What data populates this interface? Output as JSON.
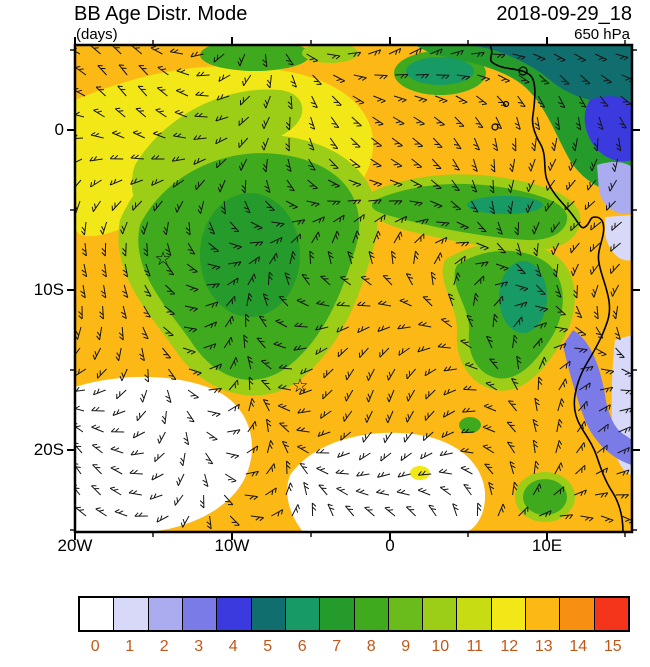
{
  "header": {
    "title": "BB Age Distr. Mode",
    "subtitle": "(days)",
    "datetime": "2018-09-29_18",
    "level": "650 hPa"
  },
  "axes": {
    "y_ticks": [
      "0",
      "10S",
      "20S"
    ],
    "x_ticks": [
      "20W",
      "10W",
      "0",
      "10E"
    ]
  },
  "map": {
    "star_char": "☆"
  },
  "colorbar": {
    "labels": [
      "0",
      "1",
      "2",
      "3",
      "4",
      "5",
      "6",
      "7",
      "8",
      "9",
      "10",
      "11",
      "12",
      "13",
      "14",
      "15"
    ],
    "colors": [
      "#FFFFFF",
      "#D8D8F8",
      "#ABABF0",
      "#7B7BE8",
      "#3A3ADF",
      "#116E6E",
      "#189A64",
      "#259B2C",
      "#3FAA1E",
      "#6ABB1C",
      "#9CCE18",
      "#C8DC14",
      "#F2E818",
      "#FCB814",
      "#F78F12",
      "#F5341C"
    ],
    "label_color": "#C2571A"
  },
  "chart_data": {
    "type": "heatmap",
    "title": "BB Age Distr. Mode",
    "units": "days",
    "level": "650 hPa",
    "valid_time": "2018-09-29_18",
    "x_tick_labels": [
      "20W",
      "10W",
      "0",
      "10E"
    ],
    "y_tick_labels": [
      "0",
      "10S",
      "20S"
    ],
    "lon_range": [
      -20,
      15.4
    ],
    "lat_range": [
      -25.1,
      5.3
    ],
    "scale_min": 0,
    "scale_max": 15,
    "legend_position": "bottom",
    "overlays": [
      "wind barbs",
      "African coastline",
      "star markers"
    ],
    "markers": [
      {
        "symbol": "star",
        "lon": -14.5,
        "lat": -8.0
      },
      {
        "symbol": "star",
        "lon": -5.7,
        "lat": -15.9
      }
    ],
    "regions": [
      {
        "value": 13,
        "description": "dominant orange background over most of the ocean domain"
      },
      {
        "value": 12,
        "description": "yellow fringes along the northwest diagonal band and bordering all green areas"
      },
      {
        "value_range": [
          8,
          11
        ],
        "description": "green plume: wedge near 15W-5W / 2S-12S, band along ~3S reaching the African coast, hook curving south to ~13S near 6E"
      },
      {
        "value_range": [
          5,
          7
        ],
        "description": "dark teal cores inside the green plume and along the northern edge from 2E to 15E"
      },
      {
        "value_range": [
          1,
          4
        ],
        "description": "blue, purple and lavender patches over land near the coast around 2N-2S and 8S-15S, and along the right edge"
      },
      {
        "value": 0,
        "description": "white minima: southwest corner south of ~16S, and a south-central swirl ~18-25S between 7W and 2E"
      }
    ]
  }
}
